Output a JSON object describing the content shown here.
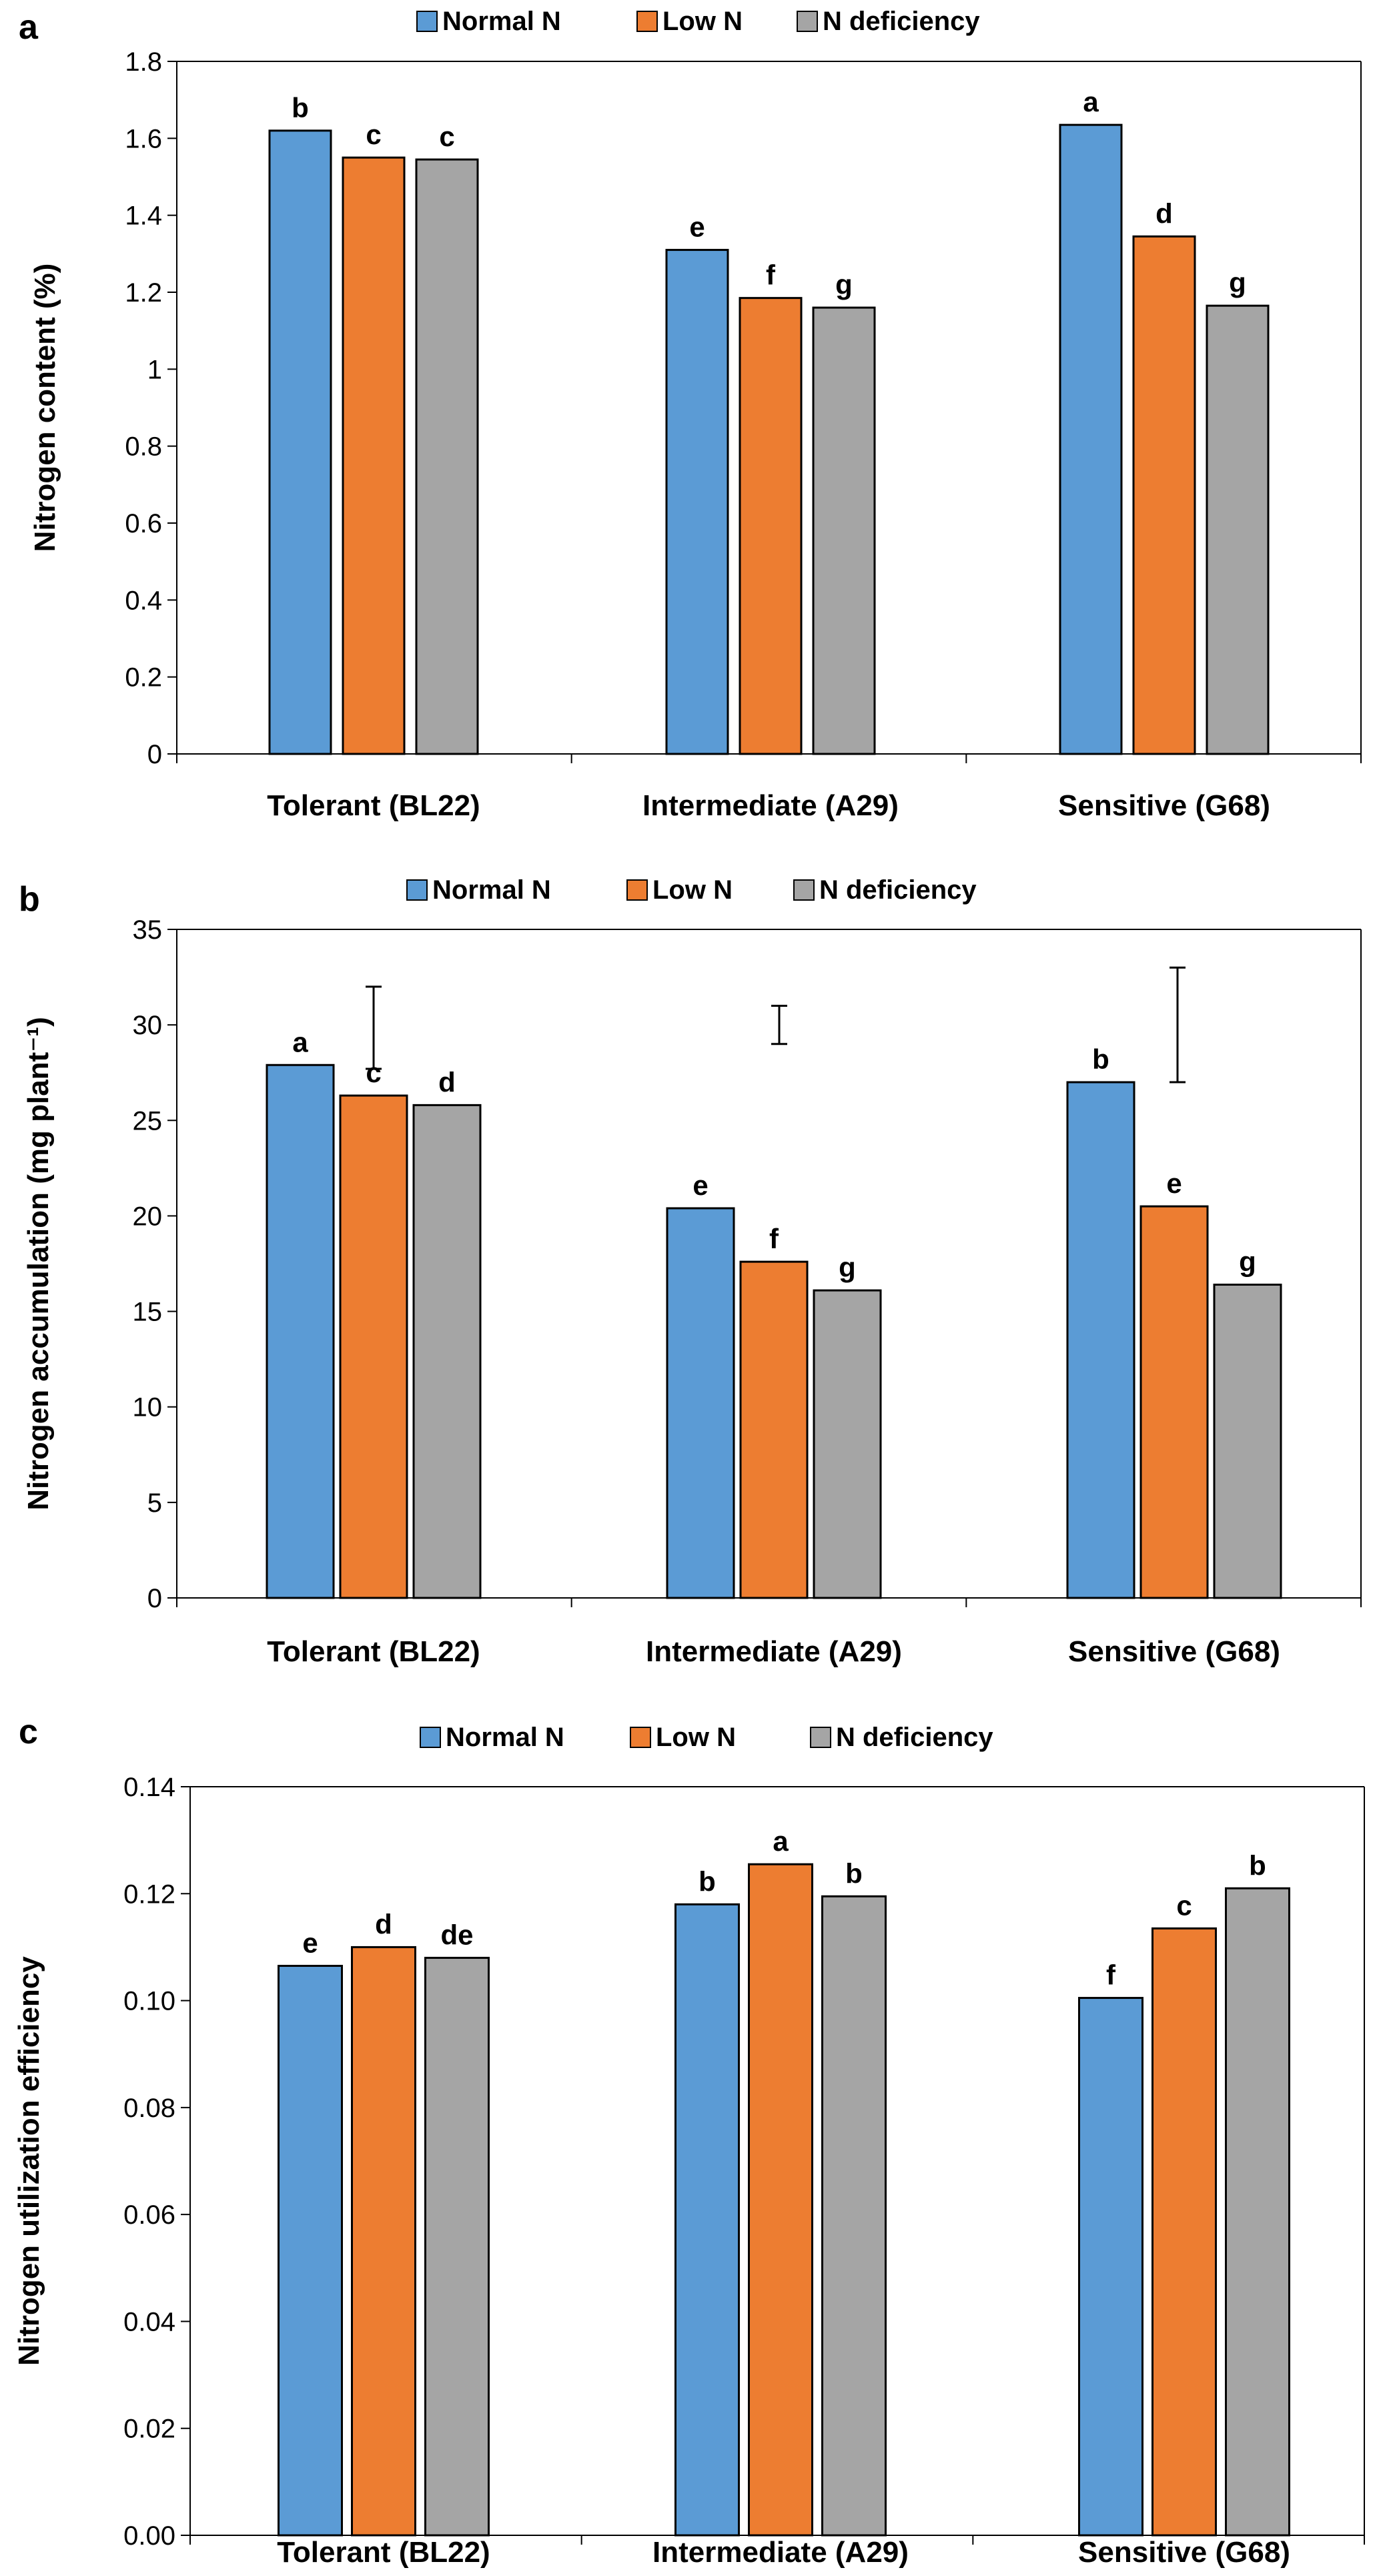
{
  "figure": {
    "series_colors": {
      "normal": "#5b9bd5",
      "low": "#ed7d31",
      "deficiency": "#a5a5a5"
    },
    "axis_color": "#000000"
  },
  "chart_data": [
    {
      "panel_label": "a",
      "type": "bar",
      "ylabel": "Nitrogen content (%)",
      "categories": [
        "Tolerant (BL22)",
        "Intermediate (A29)",
        "Sensitive (G68)"
      ],
      "ylim": [
        0,
        1.8
      ],
      "ytick_labels": [
        "0",
        "0.2",
        "0.4",
        "0.6",
        "0.8",
        "1",
        "1.2",
        "1.4",
        "1.6",
        "1.8"
      ],
      "legend": [
        "Normal N",
        "Low N",
        "N deficiency"
      ],
      "legend_position": "top-center",
      "series": [
        {
          "name": "Normal N",
          "values": [
            1.62,
            1.31,
            1.635
          ],
          "letters": [
            "b",
            "e",
            "a"
          ]
        },
        {
          "name": "Low N",
          "values": [
            1.55,
            1.185,
            1.345
          ],
          "letters": [
            "c",
            "f",
            "d"
          ]
        },
        {
          "name": "N deficiency",
          "values": [
            1.545,
            1.16,
            1.165
          ],
          "letters": [
            "c",
            "g",
            "g"
          ]
        }
      ],
      "error_bars": []
    },
    {
      "panel_label": "b",
      "type": "bar",
      "ylabel": "Nitrogen accumulation (mg plant⁻¹)",
      "categories": [
        "Tolerant (BL22)",
        "Intermediate (A29)",
        "Sensitive (G68)"
      ],
      "ylim": [
        0,
        35
      ],
      "ytick_labels": [
        "0",
        "5",
        "10",
        "15",
        "20",
        "25",
        "30",
        "35"
      ],
      "legend": [
        "Normal N",
        "Low N",
        "N deficiency"
      ],
      "legend_position": "top-center",
      "series": [
        {
          "name": "Normal N",
          "values": [
            27.9,
            20.4,
            27.0
          ],
          "letters": [
            "a",
            "e",
            "b"
          ]
        },
        {
          "name": "Low N",
          "values": [
            26.3,
            17.6,
            20.5
          ],
          "letters": [
            "c",
            "f",
            "e"
          ]
        },
        {
          "name": "N deficiency",
          "values": [
            25.8,
            16.1,
            16.4
          ],
          "letters": [
            "d",
            "g",
            "g"
          ]
        }
      ],
      "error_bars": [
        {
          "category": "Tolerant (BL22)",
          "low": 27.7,
          "high": 32.0
        },
        {
          "category": "Intermediate (A29)",
          "low": 29.0,
          "high": 31.0
        },
        {
          "category": "Sensitive (G68)",
          "low": 27.0,
          "high": 33.0
        }
      ]
    },
    {
      "panel_label": "c",
      "type": "bar",
      "ylabel": "Nitrogen utilization efficiency",
      "categories": [
        "Tolerant (BL22)",
        "Intermediate (A29)",
        "Sensitive (G68)"
      ],
      "ylim": [
        0,
        0.14
      ],
      "ytick_labels": [
        "0.00",
        "0.02",
        "0.04",
        "0.06",
        "0.08",
        "0.10",
        "0.12",
        "0.14"
      ],
      "legend": [
        "Normal N",
        "Low N",
        "N deficiency"
      ],
      "legend_position": "top-center",
      "series": [
        {
          "name": "Normal N",
          "values": [
            0.1065,
            0.118,
            0.1005
          ],
          "letters": [
            "e",
            "b",
            "f"
          ]
        },
        {
          "name": "Low N",
          "values": [
            0.11,
            0.1255,
            0.1135
          ],
          "letters": [
            "d",
            "a",
            "c"
          ]
        },
        {
          "name": "N deficiency",
          "values": [
            0.108,
            0.1195,
            0.121
          ],
          "letters": [
            "de",
            "b",
            "b"
          ]
        }
      ],
      "error_bars": []
    }
  ]
}
